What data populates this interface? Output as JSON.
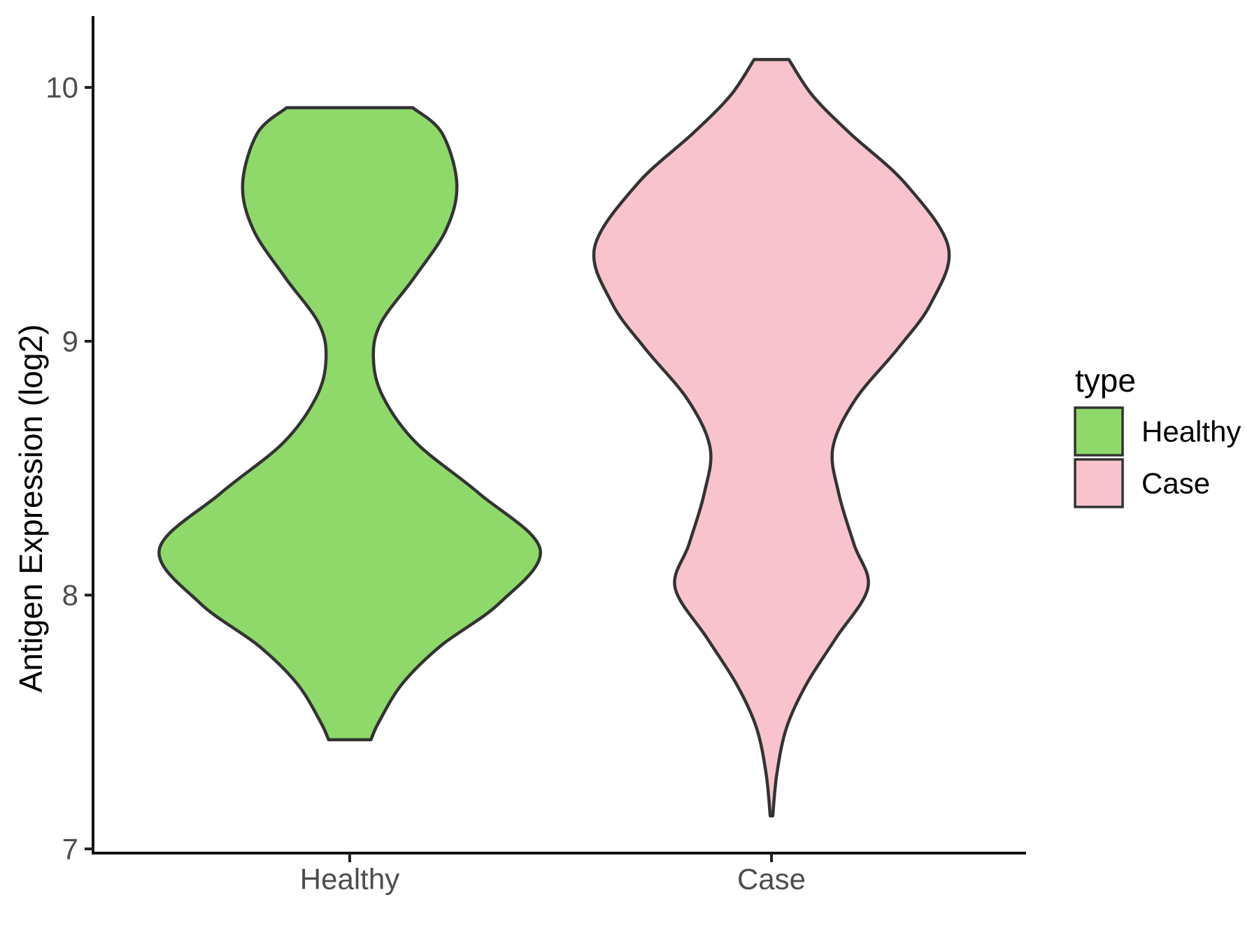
{
  "figure": {
    "background": "#FFFFFF"
  },
  "chart_data": {
    "type": "violin",
    "title": "",
    "xlabel": "",
    "ylabel": "Antigen Expression (log2)",
    "categories": [
      "Healthy",
      "Case"
    ],
    "y_ticks": [
      7,
      8,
      9,
      10
    ],
    "y_axis_range": [
      6.98,
      10.28
    ],
    "grid": false,
    "legend": {
      "title": "type",
      "position": "right",
      "entries": [
        {
          "label": "Healthy",
          "color": "#8ED96A"
        },
        {
          "label": "Case",
          "color": "#F8C3CD"
        }
      ]
    },
    "colors": {
      "outline": "#333333",
      "axis_line": "#111111",
      "tick_mark": "#222222",
      "tick_label": "#4D4D4D",
      "text": "#000000"
    },
    "series": [
      {
        "name": "Healthy",
        "fill": "#8ED96A",
        "y_min": 7.43,
        "y_max": 9.92,
        "profile": [
          [
            9.92,
            0.149
          ],
          [
            9.82,
            0.218
          ],
          [
            9.62,
            0.253
          ],
          [
            9.44,
            0.228
          ],
          [
            9.25,
            0.152
          ],
          [
            9.07,
            0.073
          ],
          [
            8.93,
            0.056
          ],
          [
            8.78,
            0.079
          ],
          [
            8.6,
            0.157
          ],
          [
            8.4,
            0.306
          ],
          [
            8.18,
            0.45
          ],
          [
            7.97,
            0.355
          ],
          [
            7.8,
            0.215
          ],
          [
            7.65,
            0.124
          ],
          [
            7.5,
            0.069
          ],
          [
            7.43,
            0.05
          ]
        ]
      },
      {
        "name": "Case",
        "fill": "#F8C3CD",
        "y_min": 7.13,
        "y_max": 10.11,
        "profile": [
          [
            10.11,
            0.041
          ],
          [
            9.97,
            0.096
          ],
          [
            9.82,
            0.185
          ],
          [
            9.62,
            0.317
          ],
          [
            9.37,
            0.418
          ],
          [
            9.15,
            0.377
          ],
          [
            8.97,
            0.298
          ],
          [
            8.77,
            0.198
          ],
          [
            8.58,
            0.145
          ],
          [
            8.4,
            0.159
          ],
          [
            8.2,
            0.195
          ],
          [
            8.03,
            0.228
          ],
          [
            7.83,
            0.152
          ],
          [
            7.65,
            0.083
          ],
          [
            7.48,
            0.036
          ],
          [
            7.3,
            0.013
          ],
          [
            7.13,
            0.003
          ]
        ]
      }
    ]
  }
}
